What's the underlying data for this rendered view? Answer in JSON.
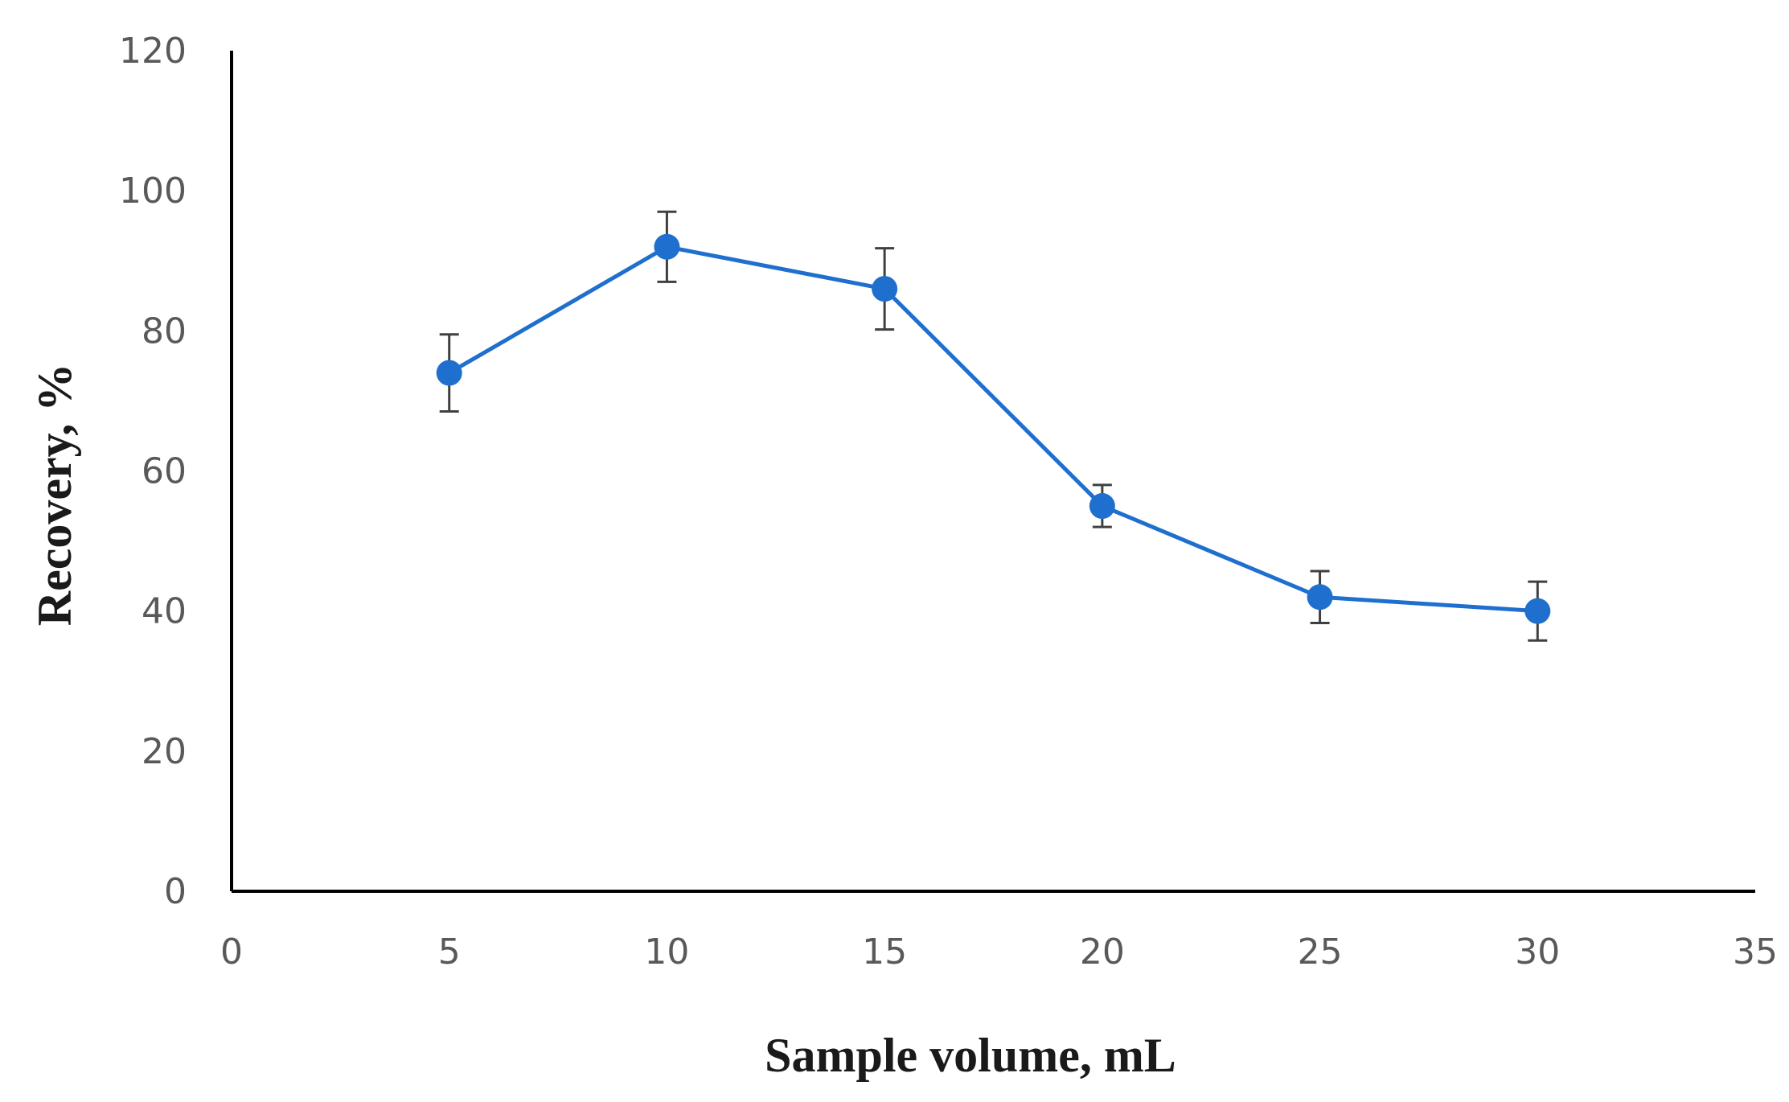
{
  "chart_data": {
    "type": "line",
    "xlabel": "Sample volume, mL",
    "ylabel": "Recovery, %",
    "xlim": [
      0,
      35
    ],
    "ylim": [
      0,
      120
    ],
    "x_ticks": [
      0,
      5,
      10,
      15,
      20,
      25,
      30,
      35
    ],
    "y_ticks": [
      0,
      20,
      40,
      60,
      80,
      100,
      120
    ],
    "grid": false,
    "series": [
      {
        "x": [
          5,
          10,
          15,
          20,
          25,
          30
        ],
        "y": [
          74,
          92,
          86,
          55,
          42,
          40
        ],
        "error": [
          5.5,
          5,
          5.8,
          3,
          3.7,
          4.2
        ],
        "color": "#1f6fce"
      }
    ]
  }
}
